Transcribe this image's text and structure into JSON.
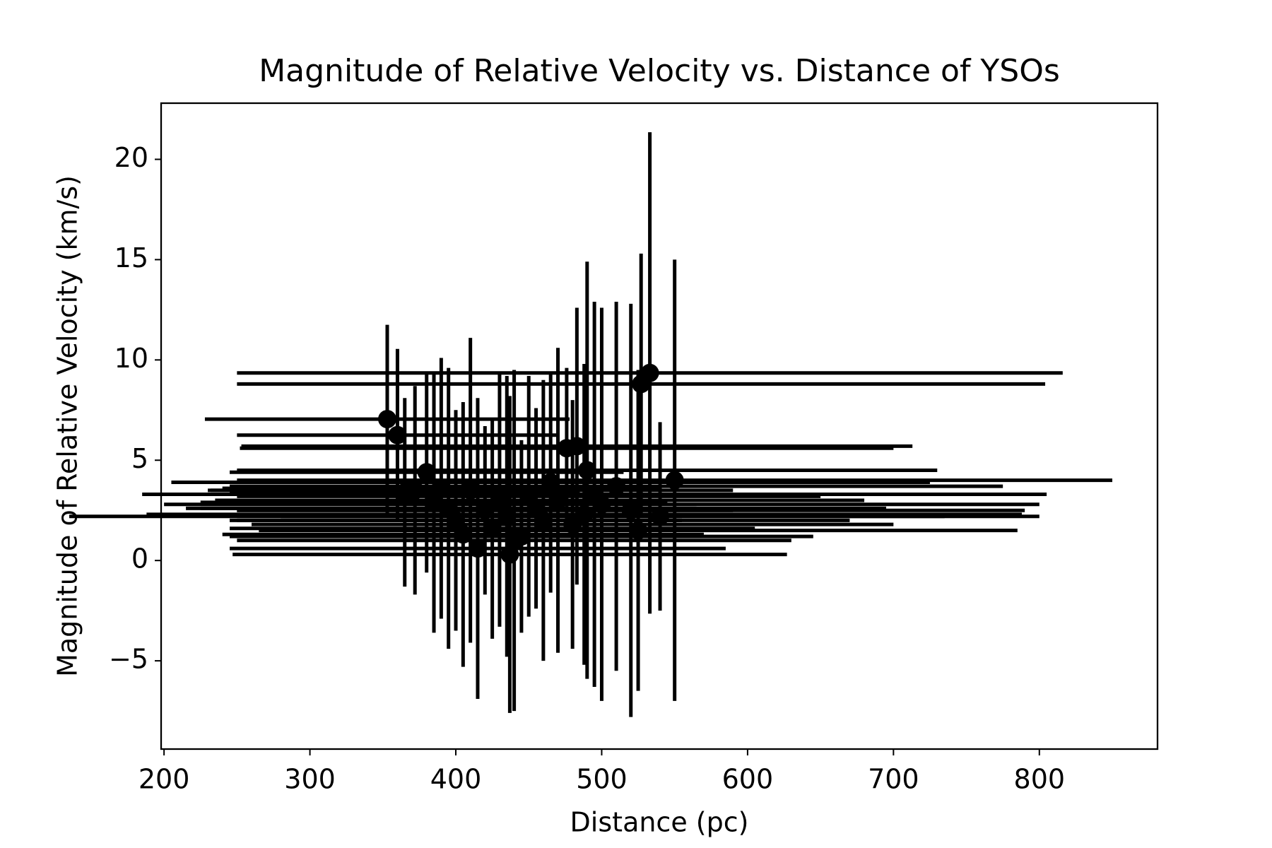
{
  "chart_data": {
    "type": "errorbar-scatter",
    "title": "Magnitude of Relative Velocity vs. Distance of YSOs",
    "x_label": "Distance (pc)",
    "y_label": "Magnitude of Relative Velocity (km/s)",
    "xlim": [
      198,
      881
    ],
    "ylim": [
      -9.4,
      22.8
    ],
    "xticks": [
      200,
      300,
      400,
      500,
      600,
      700,
      800
    ],
    "yticks": [
      {
        "value": -5,
        "label": "−5"
      },
      0,
      5,
      10,
      15,
      20
    ],
    "series": [
      {
        "color": "#000000",
        "x": [
          353,
          360,
          533,
          527,
          476,
          483,
          380,
          550,
          490,
          420,
          440,
          400,
          460,
          500,
          520,
          410,
          430,
          450,
          470,
          395,
          372,
          365,
          385,
          425,
          445,
          415,
          437,
          480,
          510,
          525,
          540,
          455,
          405,
          435,
          495,
          488,
          390,
          465
        ],
        "y": [
          7.05,
          6.25,
          9.35,
          8.8,
          5.6,
          5.7,
          4.4,
          4.0,
          4.5,
          2.5,
          1.0,
          2.0,
          2.0,
          2.8,
          2.5,
          3.5,
          3.0,
          3.2,
          3.0,
          2.6,
          3.5,
          3.4,
          2.9,
          1.6,
          1.2,
          0.6,
          0.3,
          1.8,
          3.7,
          1.5,
          2.2,
          2.6,
          1.3,
          2.2,
          3.3,
          2.3,
          3.6,
          3.9
        ],
        "xerr": [
          125,
          110,
          283,
          277,
          224,
          230,
          135,
          300,
          240,
          170,
          190,
          155,
          210,
          300,
          270,
          180,
          195,
          200,
          210,
          170,
          140,
          120,
          160,
          180,
          200,
          170,
          190,
          220,
          265,
          260,
          260,
          240,
          165,
          300,
          310,
          300,
          150,
          260
        ],
        "yerr": [
          4.7,
          4.3,
          12.0,
          6.5,
          4.0,
          6.9,
          5.0,
          11.0,
          10.4,
          4.2,
          8.5,
          5.5,
          7.0,
          9.8,
          10.3,
          7.6,
          6.3,
          6.0,
          7.6,
          7.0,
          5.2,
          4.7,
          6.5,
          5.5,
          4.8,
          7.5,
          7.9,
          6.2,
          9.2,
          8.0,
          4.7,
          5.0,
          6.6,
          7.0,
          9.6,
          7.5,
          6.5,
          5.5
        ]
      }
    ]
  }
}
